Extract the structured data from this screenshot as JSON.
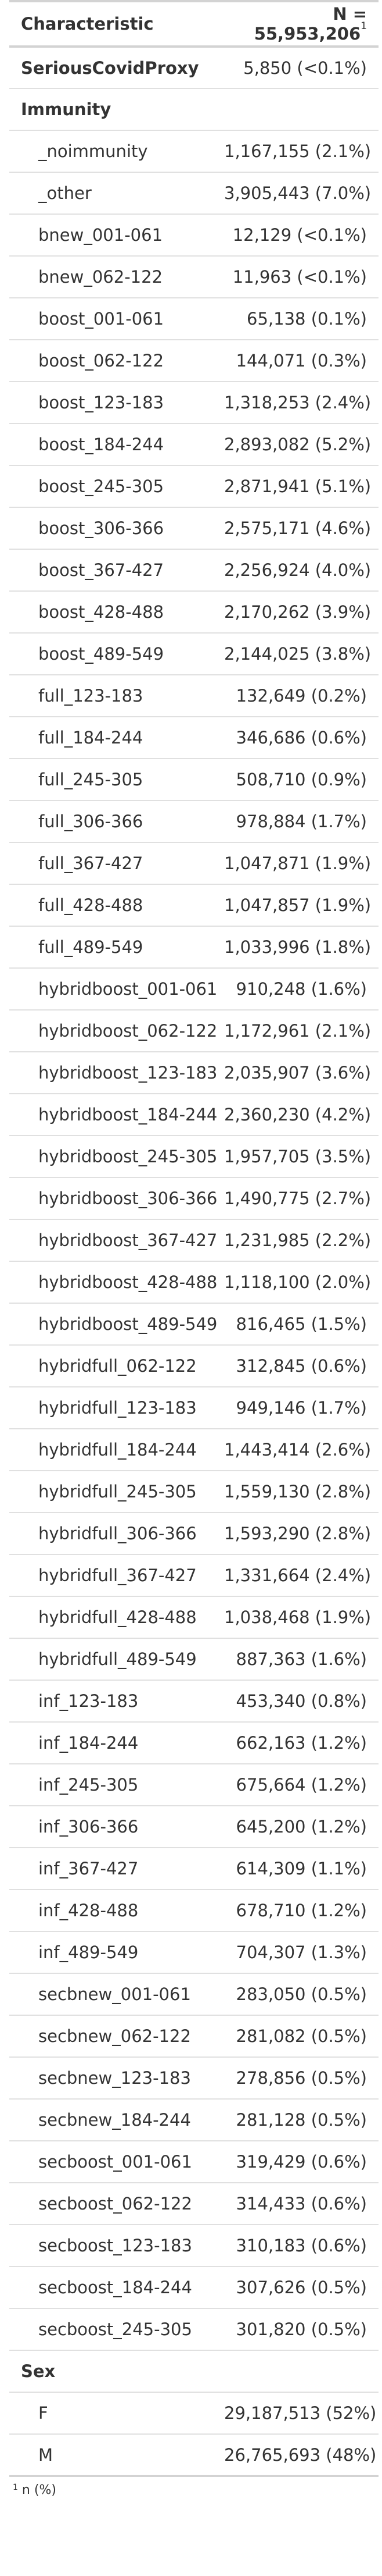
{
  "header": {
    "characteristic": "Characteristic",
    "n_label": "N = 55,953,206",
    "n_footnote_mark": "1"
  },
  "rows": [
    {
      "label": "SeriousCovidProxy",
      "value": "5,850 (<0.1%)",
      "kind": "group"
    },
    {
      "label": "Immunity",
      "value": "",
      "kind": "section"
    },
    {
      "label": "_noimmunity",
      "value": "1,167,155 (2.1%)",
      "kind": "item"
    },
    {
      "label": "_other",
      "value": "3,905,443 (7.0%)",
      "kind": "item"
    },
    {
      "label": "bnew_001-061",
      "value": "12,129 (<0.1%)",
      "kind": "item"
    },
    {
      "label": "bnew_062-122",
      "value": "11,963 (<0.1%)",
      "kind": "item"
    },
    {
      "label": "boost_001-061",
      "value": "65,138 (0.1%)",
      "kind": "item"
    },
    {
      "label": "boost_062-122",
      "value": "144,071 (0.3%)",
      "kind": "item"
    },
    {
      "label": "boost_123-183",
      "value": "1,318,253 (2.4%)",
      "kind": "item"
    },
    {
      "label": "boost_184-244",
      "value": "2,893,082 (5.2%)",
      "kind": "item"
    },
    {
      "label": "boost_245-305",
      "value": "2,871,941 (5.1%)",
      "kind": "item"
    },
    {
      "label": "boost_306-366",
      "value": "2,575,171 (4.6%)",
      "kind": "item"
    },
    {
      "label": "boost_367-427",
      "value": "2,256,924 (4.0%)",
      "kind": "item"
    },
    {
      "label": "boost_428-488",
      "value": "2,170,262 (3.9%)",
      "kind": "item"
    },
    {
      "label": "boost_489-549",
      "value": "2,144,025 (3.8%)",
      "kind": "item"
    },
    {
      "label": "full_123-183",
      "value": "132,649 (0.2%)",
      "kind": "item"
    },
    {
      "label": "full_184-244",
      "value": "346,686 (0.6%)",
      "kind": "item"
    },
    {
      "label": "full_245-305",
      "value": "508,710 (0.9%)",
      "kind": "item"
    },
    {
      "label": "full_306-366",
      "value": "978,884 (1.7%)",
      "kind": "item"
    },
    {
      "label": "full_367-427",
      "value": "1,047,871 (1.9%)",
      "kind": "item"
    },
    {
      "label": "full_428-488",
      "value": "1,047,857 (1.9%)",
      "kind": "item"
    },
    {
      "label": "full_489-549",
      "value": "1,033,996 (1.8%)",
      "kind": "item"
    },
    {
      "label": "hybridboost_001-061",
      "value": "910,248 (1.6%)",
      "kind": "item"
    },
    {
      "label": "hybridboost_062-122",
      "value": "1,172,961 (2.1%)",
      "kind": "item"
    },
    {
      "label": "hybridboost_123-183",
      "value": "2,035,907 (3.6%)",
      "kind": "item"
    },
    {
      "label": "hybridboost_184-244",
      "value": "2,360,230 (4.2%)",
      "kind": "item"
    },
    {
      "label": "hybridboost_245-305",
      "value": "1,957,705 (3.5%)",
      "kind": "item"
    },
    {
      "label": "hybridboost_306-366",
      "value": "1,490,775 (2.7%)",
      "kind": "item"
    },
    {
      "label": "hybridboost_367-427",
      "value": "1,231,985 (2.2%)",
      "kind": "item"
    },
    {
      "label": "hybridboost_428-488",
      "value": "1,118,100 (2.0%)",
      "kind": "item"
    },
    {
      "label": "hybridboost_489-549",
      "value": "816,465 (1.5%)",
      "kind": "item"
    },
    {
      "label": "hybridfull_062-122",
      "value": "312,845 (0.6%)",
      "kind": "item"
    },
    {
      "label": "hybridfull_123-183",
      "value": "949,146 (1.7%)",
      "kind": "item"
    },
    {
      "label": "hybridfull_184-244",
      "value": "1,443,414 (2.6%)",
      "kind": "item"
    },
    {
      "label": "hybridfull_245-305",
      "value": "1,559,130 (2.8%)",
      "kind": "item"
    },
    {
      "label": "hybridfull_306-366",
      "value": "1,593,290 (2.8%)",
      "kind": "item"
    },
    {
      "label": "hybridfull_367-427",
      "value": "1,331,664 (2.4%)",
      "kind": "item"
    },
    {
      "label": "hybridfull_428-488",
      "value": "1,038,468 (1.9%)",
      "kind": "item"
    },
    {
      "label": "hybridfull_489-549",
      "value": "887,363 (1.6%)",
      "kind": "item"
    },
    {
      "label": "inf_123-183",
      "value": "453,340 (0.8%)",
      "kind": "item"
    },
    {
      "label": "inf_184-244",
      "value": "662,163 (1.2%)",
      "kind": "item"
    },
    {
      "label": "inf_245-305",
      "value": "675,664 (1.2%)",
      "kind": "item"
    },
    {
      "label": "inf_306-366",
      "value": "645,200 (1.2%)",
      "kind": "item"
    },
    {
      "label": "inf_367-427",
      "value": "614,309 (1.1%)",
      "kind": "item"
    },
    {
      "label": "inf_428-488",
      "value": "678,710 (1.2%)",
      "kind": "item"
    },
    {
      "label": "inf_489-549",
      "value": "704,307 (1.3%)",
      "kind": "item"
    },
    {
      "label": "secbnew_001-061",
      "value": "283,050 (0.5%)",
      "kind": "item"
    },
    {
      "label": "secbnew_062-122",
      "value": "281,082 (0.5%)",
      "kind": "item"
    },
    {
      "label": "secbnew_123-183",
      "value": "278,856 (0.5%)",
      "kind": "item"
    },
    {
      "label": "secbnew_184-244",
      "value": "281,128 (0.5%)",
      "kind": "item"
    },
    {
      "label": "secboost_001-061",
      "value": "319,429 (0.6%)",
      "kind": "item"
    },
    {
      "label": "secboost_062-122",
      "value": "314,433 (0.6%)",
      "kind": "item"
    },
    {
      "label": "secboost_123-183",
      "value": "310,183 (0.6%)",
      "kind": "item"
    },
    {
      "label": "secboost_184-244",
      "value": "307,626 (0.5%)",
      "kind": "item"
    },
    {
      "label": "secboost_245-305",
      "value": "301,820 (0.5%)",
      "kind": "item"
    },
    {
      "label": "Sex",
      "value": "",
      "kind": "section"
    },
    {
      "label": "F",
      "value": "29,187,513 (52%)",
      "kind": "item"
    },
    {
      "label": "M",
      "value": "26,765,693 (48%)",
      "kind": "item"
    }
  ],
  "footnote": {
    "mark": "1",
    "text": "n (%)"
  }
}
